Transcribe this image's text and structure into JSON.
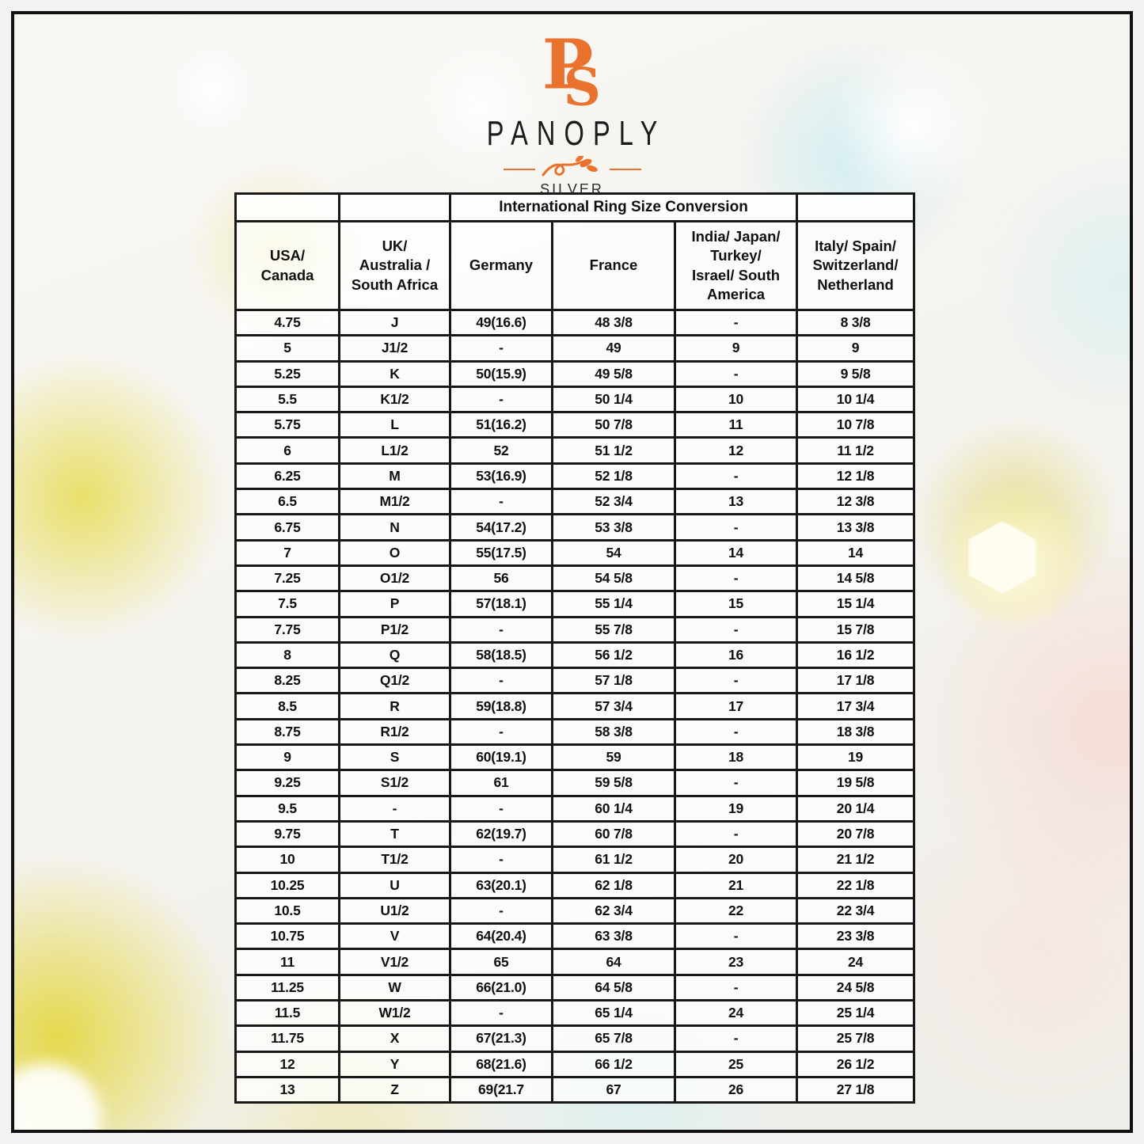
{
  "logo": {
    "monogram": "PS",
    "brand": "PANOPLY",
    "subtitle": "SILVER",
    "accent_color": "#e8722e"
  },
  "colors": {
    "table_border": "#181818",
    "text": "#101010",
    "accent_orange": "#e8722e"
  },
  "table": {
    "title": "International Ring Size Conversion",
    "columns": [
      "USA/\nCanada",
      "UK/\nAustralia /\nSouth Africa",
      "Germany",
      "France",
      "India/ Japan/\nTurkey/\nIsrael/ South\nAmerica",
      "Italy/ Spain/\nSwitzerland/\nNetherland"
    ],
    "rows": [
      [
        "4.75",
        "J",
        "49(16.6)",
        "48 3/8",
        "-",
        "8 3/8"
      ],
      [
        "5",
        "J1/2",
        "-",
        "49",
        "9",
        "9"
      ],
      [
        "5.25",
        "K",
        "50(15.9)",
        "49 5/8",
        "-",
        "9 5/8"
      ],
      [
        "5.5",
        "K1/2",
        "-",
        "50 1/4",
        "10",
        "10 1/4"
      ],
      [
        "5.75",
        "L",
        "51(16.2)",
        "50 7/8",
        "11",
        "10 7/8"
      ],
      [
        "6",
        "L1/2",
        "52",
        "51 1/2",
        "12",
        "11 1/2"
      ],
      [
        "6.25",
        "M",
        "53(16.9)",
        "52 1/8",
        "-",
        "12 1/8"
      ],
      [
        "6.5",
        "M1/2",
        "-",
        "52 3/4",
        "13",
        "12 3/8"
      ],
      [
        "6.75",
        "N",
        "54(17.2)",
        "53 3/8",
        "-",
        "13 3/8"
      ],
      [
        "7",
        "O",
        "55(17.5)",
        "54",
        "14",
        "14"
      ],
      [
        "7.25",
        "O1/2",
        "56",
        "54 5/8",
        "-",
        "14 5/8"
      ],
      [
        "7.5",
        "P",
        "57(18.1)",
        "55 1/4",
        "15",
        "15 1/4"
      ],
      [
        "7.75",
        "P1/2",
        "-",
        "55 7/8",
        "-",
        "15 7/8"
      ],
      [
        "8",
        "Q",
        "58(18.5)",
        "56 1/2",
        "16",
        "16 1/2"
      ],
      [
        "8.25",
        "Q1/2",
        "-",
        "57 1/8",
        "-",
        "17 1/8"
      ],
      [
        "8.5",
        "R",
        "59(18.8)",
        "57 3/4",
        "17",
        "17 3/4"
      ],
      [
        "8.75",
        "R1/2",
        "-",
        "58 3/8",
        "-",
        "18 3/8"
      ],
      [
        "9",
        "S",
        "60(19.1)",
        "59",
        "18",
        "19"
      ],
      [
        "9.25",
        "S1/2",
        "61",
        "59 5/8",
        "-",
        "19 5/8"
      ],
      [
        "9.5",
        "-",
        "-",
        "60 1/4",
        "19",
        "20 1/4"
      ],
      [
        "9.75",
        "T",
        "62(19.7)",
        "60 7/8",
        "-",
        "20 7/8"
      ],
      [
        "10",
        "T1/2",
        "-",
        "61 1/2",
        "20",
        "21 1/2"
      ],
      [
        "10.25",
        "U",
        "63(20.1)",
        "62 1/8",
        "21",
        "22 1/8"
      ],
      [
        "10.5",
        "U1/2",
        "-",
        "62 3/4",
        "22",
        "22 3/4"
      ],
      [
        "10.75",
        "V",
        "64(20.4)",
        "63 3/8",
        "-",
        "23 3/8"
      ],
      [
        "11",
        "V1/2",
        "65",
        "64",
        "23",
        "24"
      ],
      [
        "11.25",
        "W",
        "66(21.0)",
        "64 5/8",
        "-",
        "24 5/8"
      ],
      [
        "11.5",
        "W1/2",
        "-",
        "65 1/4",
        "24",
        "25 1/4"
      ],
      [
        "11.75",
        "X",
        "67(21.3)",
        "65 7/8",
        "-",
        "25 7/8"
      ],
      [
        "12",
        "Y",
        "68(21.6)",
        "66 1/2",
        "25",
        "26 1/2"
      ],
      [
        "13",
        "Z",
        "69(21.7",
        "67",
        "26",
        "27 1/8"
      ]
    ]
  }
}
